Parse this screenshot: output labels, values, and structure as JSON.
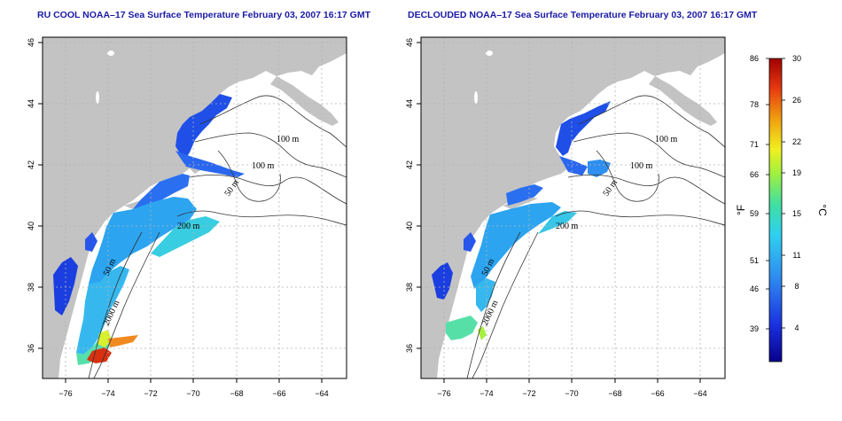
{
  "panels": [
    {
      "title": "RU COOL NOAA–17 Sea Surface Temperature February 03, 2007 16:17 GMT",
      "contour_labels": [
        "100 m",
        "100 m",
        "50 m",
        "200 m",
        "50 m",
        "2000 m"
      ]
    },
    {
      "title": "DECLOUDED NOAA–17 Sea Surface Temperature February 03, 2007 16:17 GMT",
      "contour_labels": [
        "100 m",
        "100 m",
        "50 m",
        "200 m",
        "50 m",
        "2000 m"
      ]
    }
  ],
  "axes": {
    "x_ticks": [
      "−76",
      "−74",
      "−72",
      "−70",
      "−68",
      "−66",
      "−64"
    ],
    "y_ticks": [
      "36",
      "38",
      "40",
      "42",
      "44",
      "46"
    ],
    "lon_range": [
      -77.3,
      -62.8
    ],
    "lat_range": [
      35.0,
      46.2
    ]
  },
  "colorbar": {
    "f_label": "°F",
    "c_label": "°C",
    "f_ticks": [
      "86",
      "78",
      "71",
      "66",
      "59",
      "51",
      "46",
      "39"
    ],
    "c_ticks": [
      "30",
      "26",
      "22",
      "19",
      "15",
      "11",
      "8",
      "4"
    ],
    "colors": [
      "#08008a",
      "#1a30e0",
      "#2f8df0",
      "#2fd0f0",
      "#40e0a0",
      "#a0f040",
      "#f0f020",
      "#f0a010",
      "#e83a10",
      "#a00000"
    ]
  },
  "colors": {
    "land": "#c3c3c3",
    "ocean": "#ffffff",
    "grid": "#b4b4b4"
  }
}
